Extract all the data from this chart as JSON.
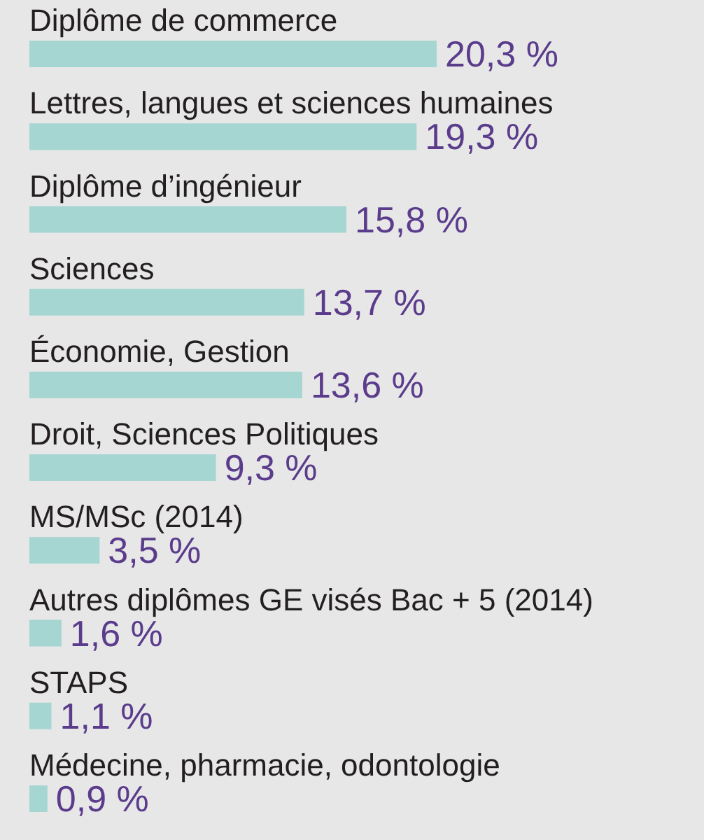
{
  "chart_data": {
    "type": "bar",
    "orientation": "horizontal",
    "tick_labels": "y",
    "categories": [
      "Diplôme de commerce",
      "Lettres, langues et sciences humaines",
      "Diplôme d’ingénieur",
      "Sciences",
      "Économie, Gestion",
      "Droit, Sciences Politiques",
      "MS/MSc (2014)",
      "Autres diplômes GE visés Bac + 5 (2014)",
      "STAPS",
      "Médecine, pharmacie, odontologie"
    ],
    "values": [
      20.3,
      19.3,
      15.8,
      13.7,
      13.6,
      9.3,
      3.5,
      1.6,
      1.1,
      0.9
    ],
    "value_labels": [
      "20,3 %",
      "19,3 %",
      "15,8 %",
      "13,7 %",
      "13,6 %",
      "9,3 %",
      "3,5 %",
      "1,6 %",
      "1,1 %",
      "0,9 %"
    ],
    "color": "#a6d6d2"
  }
}
